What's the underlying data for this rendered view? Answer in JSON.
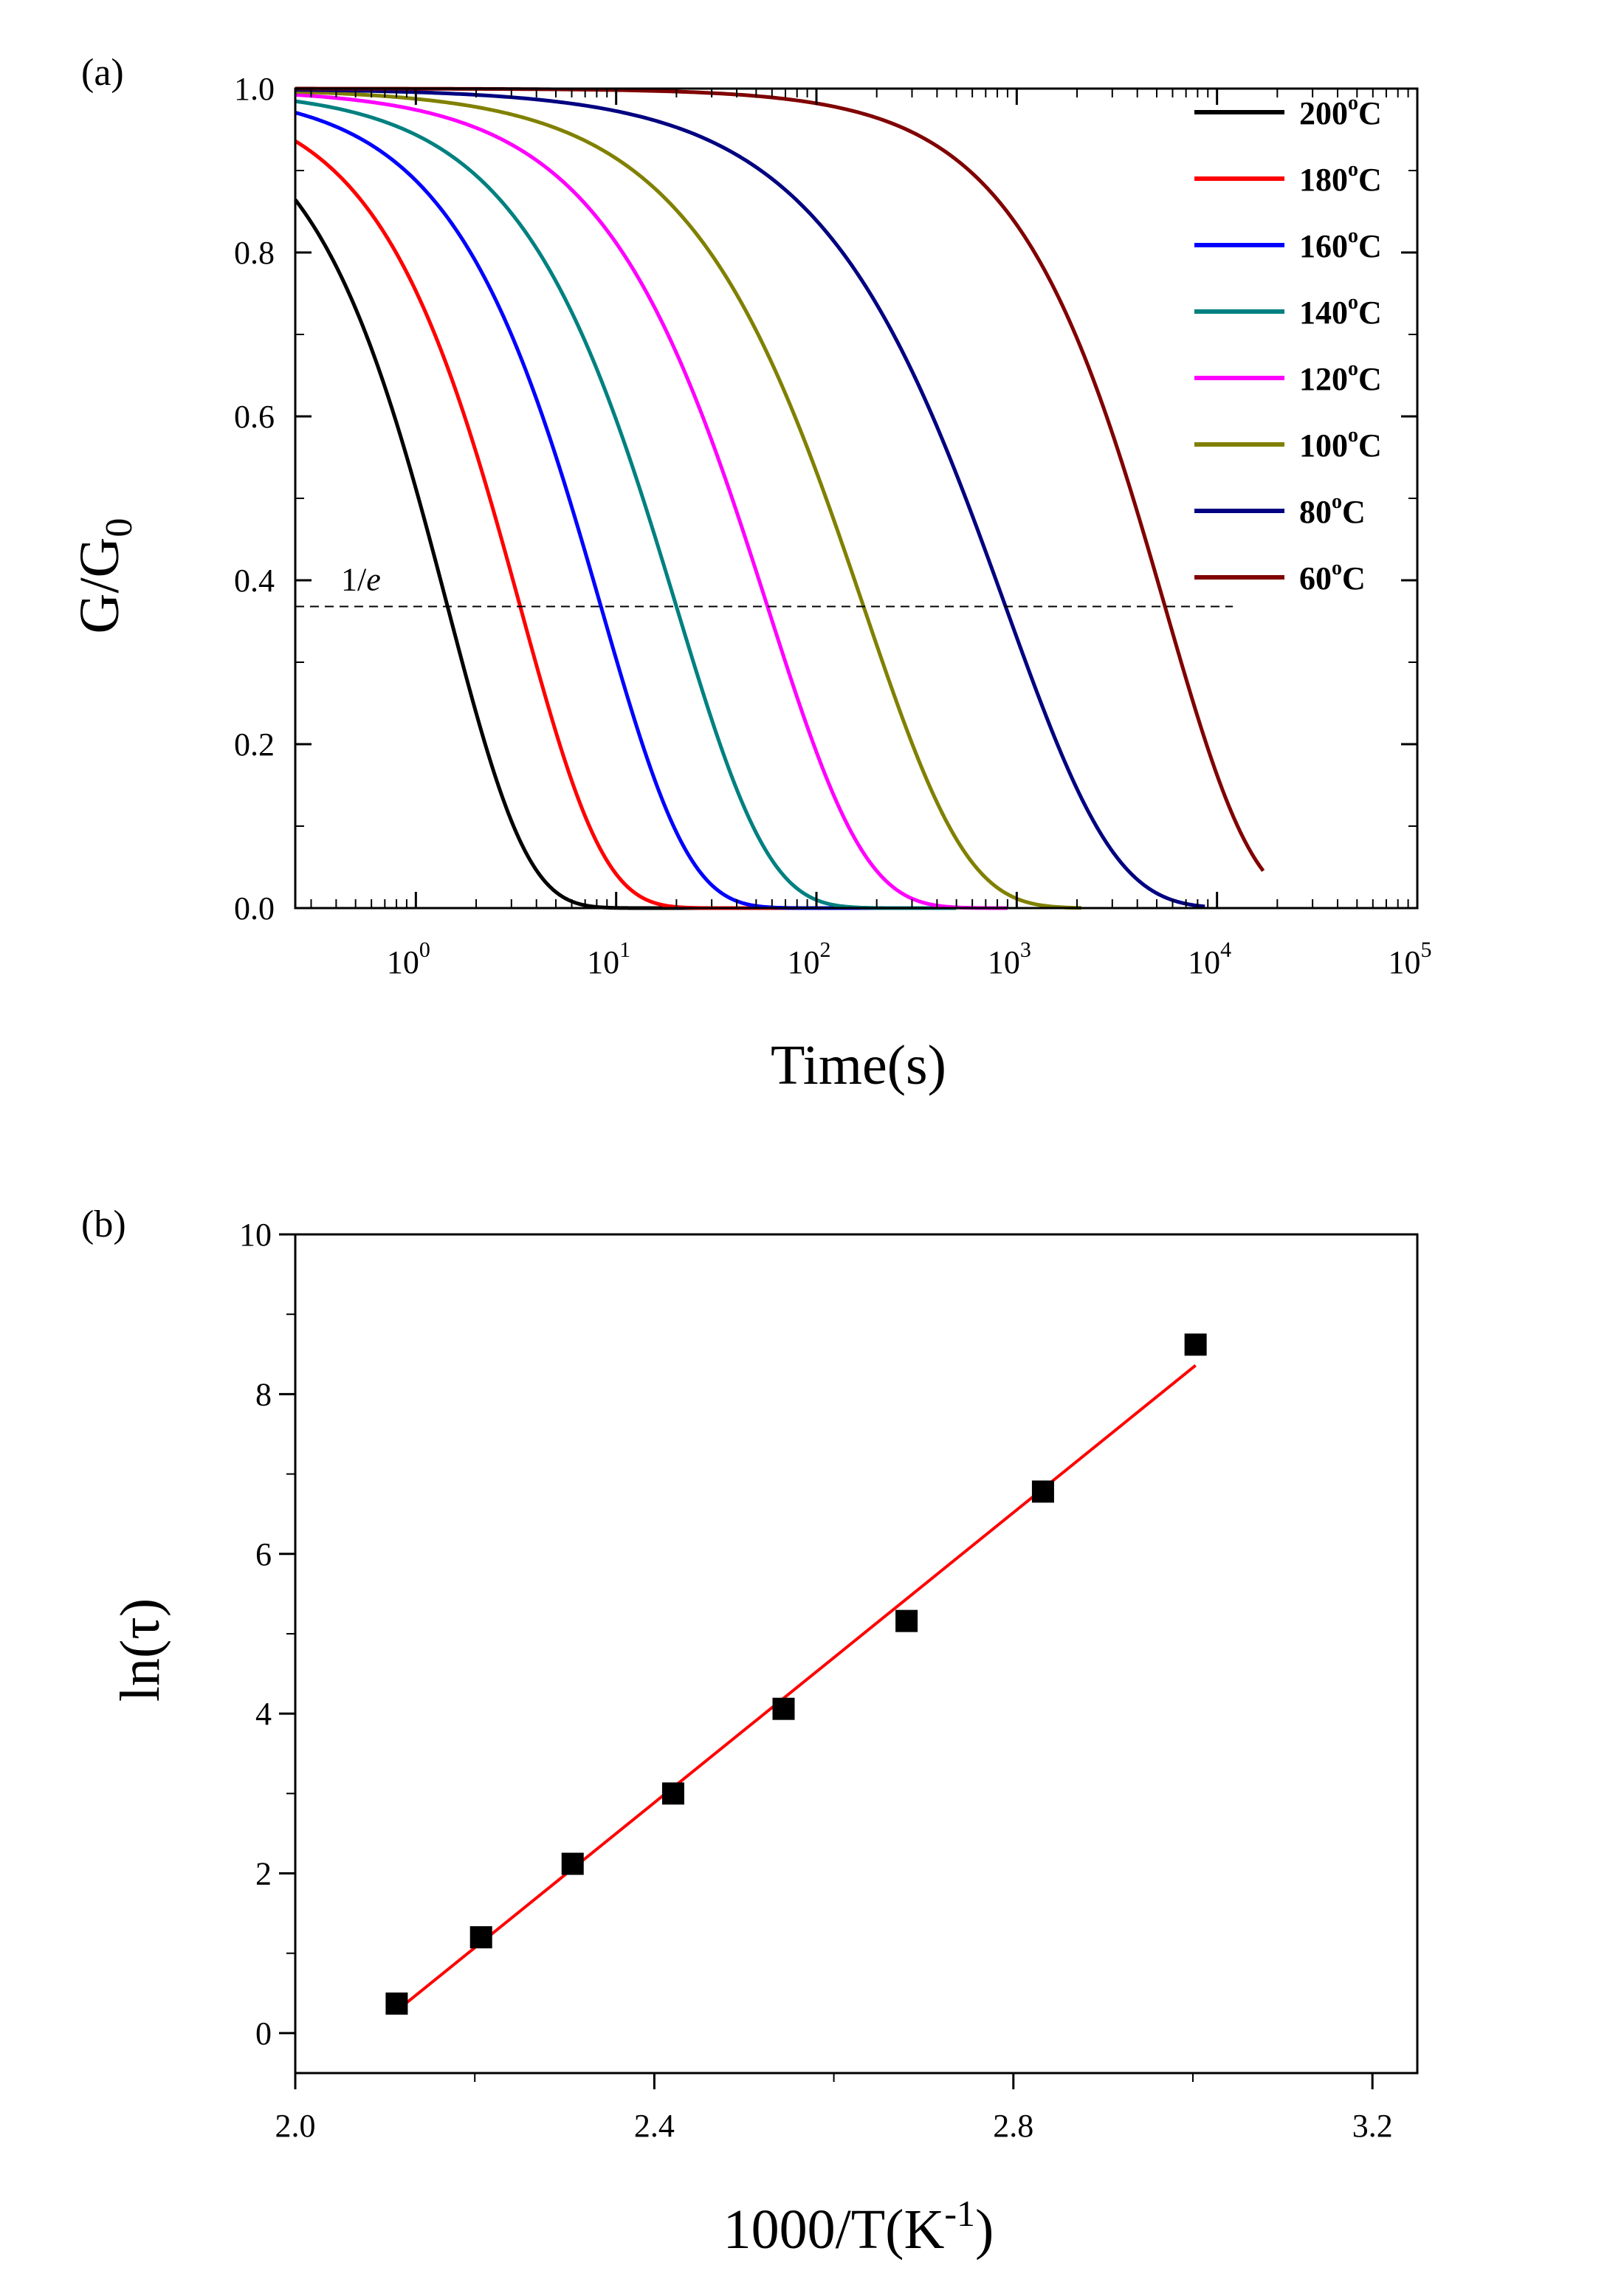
{
  "chart_data": [
    {
      "panel": "(a)",
      "type": "line",
      "xscale": "log",
      "xlabel": "Time(s)",
      "ylabel": "G/G",
      "ylabel_sub": "0",
      "xlim": [
        0.25,
        100000
      ],
      "ylim": [
        0,
        1.0
      ],
      "xticks": [
        {
          "value": 1,
          "base": "10",
          "exp": "0"
        },
        {
          "value": 10,
          "base": "10",
          "exp": "1"
        },
        {
          "value": 100,
          "base": "10",
          "exp": "2"
        },
        {
          "value": 1000,
          "base": "10",
          "exp": "3"
        },
        {
          "value": 10000,
          "base": "10",
          "exp": "4"
        },
        {
          "value": 100000,
          "base": "10",
          "exp": "5"
        }
      ],
      "yticks": [
        {
          "value": 0.0,
          "label": "0.0"
        },
        {
          "value": 0.2,
          "label": "0.2"
        },
        {
          "value": 0.4,
          "label": "0.4"
        },
        {
          "value": 0.6,
          "label": "0.6"
        },
        {
          "value": 0.8,
          "label": "0.8"
        },
        {
          "value": 1.0,
          "label": "1.0"
        }
      ],
      "reference_line": {
        "label": "1/",
        "label_italic": "e",
        "y": 0.368,
        "x_start": 0.25,
        "x_end": 12000
      },
      "legend": {
        "position": "top-right"
      },
      "series": [
        {
          "name": "200",
          "unit": "C",
          "sup": "o",
          "color": "#000000",
          "tau": 1.44,
          "beta": 1.1,
          "t_end": 60
        },
        {
          "name": "180",
          "unit": "C",
          "sup": "o",
          "color": "#ff0000",
          "tau": 3.32,
          "beta": 1.05,
          "t_end": 160
        },
        {
          "name": "160",
          "unit": "C",
          "sup": "o",
          "color": "#0000ff",
          "tau": 8.4,
          "beta": 1.0,
          "t_end": 350
        },
        {
          "name": "140",
          "unit": "C",
          "sup": "o",
          "color": "#008080",
          "tau": 20.0,
          "beta": 0.95,
          "t_end": 500
        },
        {
          "name": "120",
          "unit": "C",
          "sup": "o",
          "color": "#ff00ff",
          "tau": 57.0,
          "beta": 0.9,
          "t_end": 900
        },
        {
          "name": "100",
          "unit": "C",
          "sup": "o",
          "color": "#808000",
          "tau": 172.0,
          "beta": 0.85,
          "t_end": 2100
        },
        {
          "name": "80",
          "unit": "C",
          "sup": "o",
          "color": "#000080",
          "tau": 880.0,
          "beta": 0.8,
          "t_end": 8700
        },
        {
          "name": "60",
          "unit": "C",
          "sup": "o",
          "color": "#800000",
          "tau": 5500.0,
          "beta": 1.0,
          "t_end": 17000
        }
      ]
    },
    {
      "panel": "(b)",
      "type": "scatter",
      "xlabel": "1000/T(K",
      "xlabel_sup": "-1",
      "xlabel_close": ")",
      "ylabel": "ln(τ)",
      "xlim": [
        2.0,
        3.25
      ],
      "ylim": [
        -0.5,
        10
      ],
      "xticks": [
        {
          "value": 2.0,
          "label": "2.0"
        },
        {
          "value": 2.4,
          "label": "2.4"
        },
        {
          "value": 2.8,
          "label": "2.8"
        },
        {
          "value": 3.2,
          "label": "3.2"
        }
      ],
      "yticks": [
        {
          "value": 0,
          "label": "0"
        },
        {
          "value": 2,
          "label": "2"
        },
        {
          "value": 4,
          "label": "4"
        },
        {
          "value": 6,
          "label": "6"
        },
        {
          "value": 8,
          "label": "8"
        },
        {
          "value": 10,
          "label": "10"
        }
      ],
      "points": {
        "x": [
          2.113,
          2.207,
          2.309,
          2.421,
          2.544,
          2.681,
          2.833,
          3.003
        ],
        "y": [
          0.37,
          1.2,
          2.12,
          3.0,
          4.06,
          5.16,
          6.78,
          8.62
        ]
      },
      "fit": {
        "color": "#ff0000",
        "x": [
          2.113,
          3.003
        ],
        "y": [
          0.28,
          8.36
        ]
      }
    }
  ]
}
